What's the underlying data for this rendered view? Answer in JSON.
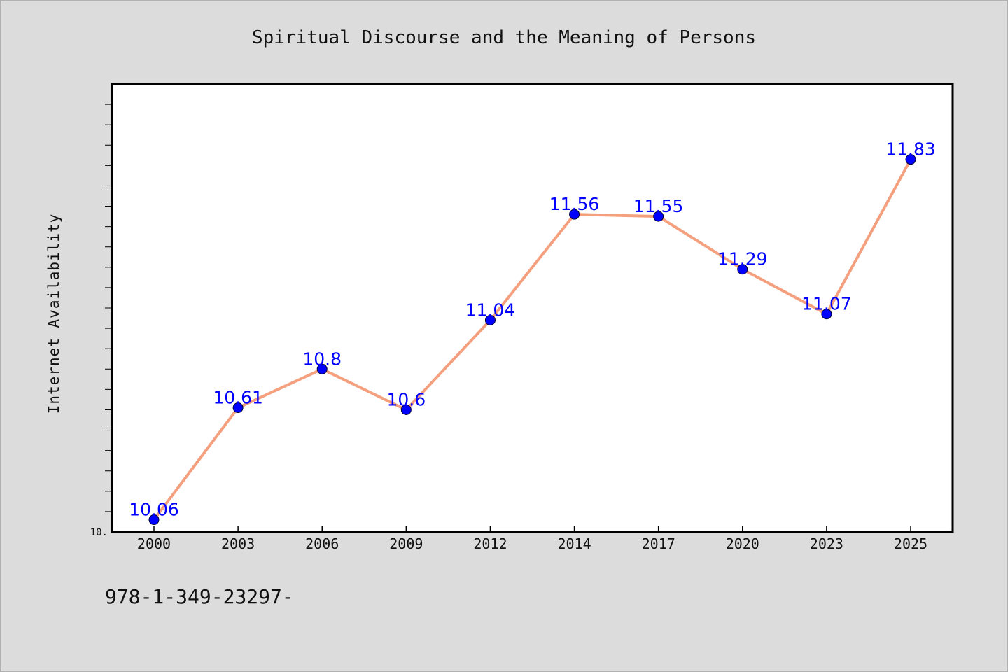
{
  "chart_data": {
    "type": "line",
    "title": "Spiritual Discourse and the Meaning of Persons",
    "xlabel": "",
    "ylabel": "Internet Availability",
    "categories": [
      "2000",
      "2003",
      "2006",
      "2009",
      "2012",
      "2014",
      "2017",
      "2020",
      "2023",
      "2025"
    ],
    "series": [
      {
        "values": [
          10.06,
          10.61,
          10.8,
          10.6,
          11.04,
          11.56,
          11.55,
          11.29,
          11.07,
          11.83
        ],
        "labels": [
          "10.06",
          "10.61",
          "10.8",
          "10.6",
          "11.04",
          "11.56",
          "11.55",
          "11.29",
          "11.07",
          "11.83"
        ],
        "line_color": "#f4a07e",
        "marker_color": "#0000ff"
      }
    ],
    "ylim": [
      10.0,
      12.2
    ],
    "y_tick_labels": [
      "10."
    ],
    "grid": false,
    "legend": false
  },
  "footnote": "978-1-349-23297-"
}
